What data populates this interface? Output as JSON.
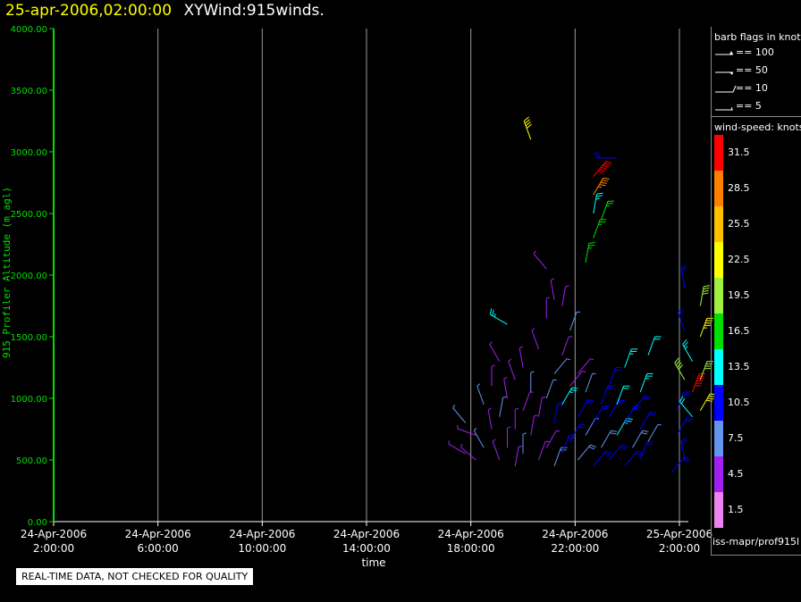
{
  "header": {
    "date": "25-apr-2006,02:00:00",
    "name": "XYWind:915winds."
  },
  "footer": {
    "disclaimer": "REAL-TIME DATA, NOT CHECKED FOR QUALITY",
    "source": "iss-mapr/prof915l"
  },
  "legend": {
    "flags_title": "barb flags in knots",
    "flags": [
      "== 100",
      "== 50",
      "== 10",
      "== 5"
    ],
    "speed_title": "wind-speed: knots",
    "speed_bins": [
      {
        "label": "31.5",
        "color": "#ff0000"
      },
      {
        "label": "28.5",
        "color": "#ff8000"
      },
      {
        "label": "25.5",
        "color": "#ffc000"
      },
      {
        "label": "22.5",
        "color": "#ffff00"
      },
      {
        "label": "19.5",
        "color": "#a0f040"
      },
      {
        "label": "16.5",
        "color": "#00e000"
      },
      {
        "label": "13.5",
        "color": "#00ffff"
      },
      {
        "label": "10.5",
        "color": "#0000ff"
      },
      {
        "label": "7.5",
        "color": "#6495ed"
      },
      {
        "label": "4.5",
        "color": "#a020f0"
      },
      {
        "label": "1.5",
        "color": "#ee82ee"
      }
    ]
  },
  "chart_data": {
    "type": "scatter",
    "xlabel": "time",
    "ylabel": "915 Profiler Altitude (m agl)",
    "ylim": [
      0,
      4000
    ],
    "yticks": [
      "0.00",
      "500.00",
      "1000.00",
      "1500.00",
      "2000.00",
      "2500.00",
      "3000.00",
      "3500.00",
      "4000.00"
    ],
    "xticks": [
      {
        "date": "24-Apr-2006",
        "time": "2:00:00"
      },
      {
        "date": "24-Apr-2006",
        "time": "6:00:00"
      },
      {
        "date": "24-Apr-2006",
        "time": "10:00:00"
      },
      {
        "date": "24-Apr-2006",
        "time": "14:00:00"
      },
      {
        "date": "24-Apr-2006",
        "time": "18:00:00"
      },
      {
        "date": "24-Apr-2006",
        "time": "22:00:00"
      },
      {
        "date": "25-Apr-2006",
        "time": "2:00:00"
      }
    ],
    "grid": "vertical",
    "barbs": [
      {
        "t": 15.8,
        "alt": 550,
        "spd": 5,
        "dir": 300
      },
      {
        "t": 15.8,
        "alt": 800,
        "spd": 6,
        "dir": 320
      },
      {
        "t": 16.2,
        "alt": 500,
        "spd": 5,
        "dir": 310
      },
      {
        "t": 16.2,
        "alt": 700,
        "spd": 4,
        "dir": 290
      },
      {
        "t": 16.5,
        "alt": 600,
        "spd": 7,
        "dir": 330
      },
      {
        "t": 16.5,
        "alt": 950,
        "spd": 6,
        "dir": 340
      },
      {
        "t": 16.8,
        "alt": 750,
        "spd": 5,
        "dir": 350
      },
      {
        "t": 16.8,
        "alt": 1100,
        "spd": 5,
        "dir": 0
      },
      {
        "t": 17.1,
        "alt": 500,
        "spd": 4,
        "dir": 340
      },
      {
        "t": 17.1,
        "alt": 850,
        "spd": 6,
        "dir": 10
      },
      {
        "t": 17.1,
        "alt": 1300,
        "spd": 5,
        "dir": 330
      },
      {
        "t": 17.4,
        "alt": 600,
        "spd": 5,
        "dir": 0
      },
      {
        "t": 17.4,
        "alt": 1000,
        "spd": 4,
        "dir": 350
      },
      {
        "t": 17.4,
        "alt": 1600,
        "spd": 13,
        "dir": 300
      },
      {
        "t": 17.7,
        "alt": 450,
        "spd": 5,
        "dir": 10
      },
      {
        "t": 17.7,
        "alt": 750,
        "spd": 5,
        "dir": 0
      },
      {
        "t": 17.7,
        "alt": 1150,
        "spd": 4,
        "dir": 340
      },
      {
        "t": 18.0,
        "alt": 550,
        "spd": 6,
        "dir": 0
      },
      {
        "t": 18.0,
        "alt": 900,
        "spd": 5,
        "dir": 20
      },
      {
        "t": 18.0,
        "alt": 1250,
        "spd": 5,
        "dir": 350
      },
      {
        "t": 18.3,
        "alt": 700,
        "spd": 5,
        "dir": 10
      },
      {
        "t": 18.3,
        "alt": 1050,
        "spd": 6,
        "dir": 0
      },
      {
        "t": 18.3,
        "alt": 3100,
        "spd": 21,
        "dir": 340
      },
      {
        "t": 18.6,
        "alt": 500,
        "spd": 4,
        "dir": 20
      },
      {
        "t": 18.6,
        "alt": 850,
        "spd": 5,
        "dir": 10
      },
      {
        "t": 18.6,
        "alt": 1400,
        "spd": 4,
        "dir": 340
      },
      {
        "t": 18.9,
        "alt": 600,
        "spd": 5,
        "dir": 30
      },
      {
        "t": 18.9,
        "alt": 1000,
        "spd": 6,
        "dir": 20
      },
      {
        "t": 18.9,
        "alt": 1650,
        "spd": 5,
        "dir": 0
      },
      {
        "t": 18.9,
        "alt": 2050,
        "spd": 4,
        "dir": 320
      },
      {
        "t": 19.2,
        "alt": 450,
        "spd": 8,
        "dir": 20
      },
      {
        "t": 19.2,
        "alt": 800,
        "spd": 9,
        "dir": 10
      },
      {
        "t": 19.2,
        "alt": 1200,
        "spd": 6,
        "dir": 40
      },
      {
        "t": 19.2,
        "alt": 1800,
        "spd": 5,
        "dir": 350
      },
      {
        "t": 19.5,
        "alt": 550,
        "spd": 10,
        "dir": 20
      },
      {
        "t": 19.5,
        "alt": 950,
        "spd": 13,
        "dir": 30
      },
      {
        "t": 19.5,
        "alt": 1350,
        "spd": 5,
        "dir": 20
      },
      {
        "t": 19.5,
        "alt": 1750,
        "spd": 5,
        "dir": 10
      },
      {
        "t": 19.8,
        "alt": 650,
        "spd": 9,
        "dir": 30
      },
      {
        "t": 19.8,
        "alt": 1100,
        "spd": 5,
        "dir": 40
      },
      {
        "t": 19.8,
        "alt": 1550,
        "spd": 6,
        "dir": 20
      },
      {
        "t": 20.1,
        "alt": 500,
        "spd": 8,
        "dir": 40
      },
      {
        "t": 20.1,
        "alt": 850,
        "spd": 9,
        "dir": 30
      },
      {
        "t": 20.1,
        "alt": 1200,
        "spd": 5,
        "dir": 40
      },
      {
        "t": 20.4,
        "alt": 700,
        "spd": 7,
        "dir": 30
      },
      {
        "t": 20.4,
        "alt": 1050,
        "spd": 6,
        "dir": 20
      },
      {
        "t": 20.4,
        "alt": 2100,
        "spd": 17,
        "dir": 10
      },
      {
        "t": 20.7,
        "alt": 450,
        "spd": 9,
        "dir": 40
      },
      {
        "t": 20.7,
        "alt": 800,
        "spd": 10,
        "dir": 30
      },
      {
        "t": 20.7,
        "alt": 2300,
        "spd": 17,
        "dir": 20
      },
      {
        "t": 20.7,
        "alt": 2500,
        "spd": 14,
        "dir": 10
      },
      {
        "t": 20.7,
        "alt": 2650,
        "spd": 27,
        "dir": 30
      },
      {
        "t": 20.7,
        "alt": 2800,
        "spd": 32,
        "dir": 40
      },
      {
        "t": 21.0,
        "alt": 600,
        "spd": 8,
        "dir": 30
      },
      {
        "t": 21.0,
        "alt": 950,
        "spd": 10,
        "dir": 20
      },
      {
        "t": 21.0,
        "alt": 2450,
        "spd": 15,
        "dir": 20
      },
      {
        "t": 21.3,
        "alt": 500,
        "spd": 9,
        "dir": 40
      },
      {
        "t": 21.3,
        "alt": 850,
        "spd": 11,
        "dir": 30
      },
      {
        "t": 21.3,
        "alt": 1100,
        "spd": 10,
        "dir": 20
      },
      {
        "t": 21.6,
        "alt": 700,
        "spd": 14,
        "dir": 30
      },
      {
        "t": 21.6,
        "alt": 950,
        "spd": 12,
        "dir": 20
      },
      {
        "t": 21.6,
        "alt": 2950,
        "spd": 9,
        "dir": 270
      },
      {
        "t": 21.9,
        "alt": 450,
        "spd": 9,
        "dir": 40
      },
      {
        "t": 21.9,
        "alt": 800,
        "spd": 10,
        "dir": 30
      },
      {
        "t": 21.9,
        "alt": 1250,
        "spd": 13,
        "dir": 20
      },
      {
        "t": 22.2,
        "alt": 600,
        "spd": 8,
        "dir": 30
      },
      {
        "t": 22.2,
        "alt": 900,
        "spd": 11,
        "dir": 40
      },
      {
        "t": 22.5,
        "alt": 500,
        "spd": 9,
        "dir": 20
      },
      {
        "t": 22.5,
        "alt": 750,
        "spd": 10,
        "dir": 30
      },
      {
        "t": 22.5,
        "alt": 1050,
        "spd": 14,
        "dir": 20
      },
      {
        "t": 22.8,
        "alt": 650,
        "spd": 7,
        "dir": 30
      },
      {
        "t": 22.8,
        "alt": 1350,
        "spd": 12,
        "dir": 20
      },
      {
        "t": 23.7,
        "alt": 400,
        "spd": 9,
        "dir": 40
      },
      {
        "t": 23.9,
        "alt": 700,
        "spd": 11,
        "dir": 30
      },
      {
        "t": 23.9,
        "alt": 900,
        "spd": 10,
        "dir": 20
      },
      {
        "t": 24.2,
        "alt": 500,
        "spd": 9,
        "dir": 350
      },
      {
        "t": 24.2,
        "alt": 1150,
        "spd": 18,
        "dir": 330
      },
      {
        "t": 24.2,
        "alt": 1550,
        "spd": 11,
        "dir": 340
      },
      {
        "t": 24.2,
        "alt": 1900,
        "spd": 10,
        "dir": 350
      },
      {
        "t": 24.5,
        "alt": 850,
        "spd": 12,
        "dir": 320
      },
      {
        "t": 24.5,
        "alt": 1050,
        "spd": 30,
        "dir": 20
      },
      {
        "t": 24.5,
        "alt": 1300,
        "spd": 14,
        "dir": 330
      },
      {
        "t": 24.8,
        "alt": 900,
        "spd": 22,
        "dir": 30
      },
      {
        "t": 24.8,
        "alt": 1150,
        "spd": 20,
        "dir": 20
      },
      {
        "t": 24.8,
        "alt": 1500,
        "spd": 23,
        "dir": 20
      },
      {
        "t": 24.8,
        "alt": 1750,
        "spd": 18,
        "dir": 10
      }
    ]
  }
}
